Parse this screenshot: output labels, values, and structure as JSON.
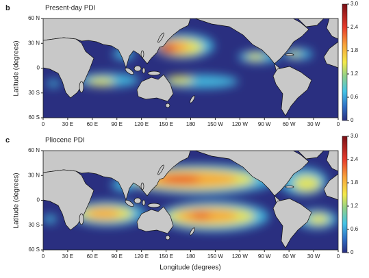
{
  "panels": [
    {
      "label": "b",
      "title": "Present-day PDI",
      "colorbar_ticks": [
        {
          "value": 3,
          "label": "3.0"
        },
        2.4,
        1.8,
        1.2,
        0.6,
        0
      ]
    },
    {
      "label": "c",
      "title": "Pliocene PDI",
      "colorbar_ticks": [
        {
          "value": 3,
          "label": "3.0"
        },
        2.4,
        1.8,
        1.2,
        0.6,
        0
      ]
    }
  ],
  "lat_ticks": [
    "60 N",
    "30 N",
    "0",
    "30 S",
    "60 S"
  ],
  "lon_ticks": [
    "0",
    "30 E",
    "60 E",
    "90 E",
    "120 E",
    "150 E",
    "180",
    "150 W",
    "120 W",
    "90 W",
    "60 W",
    "30 W",
    "0"
  ],
  "y_label": "Latitude (degrees)",
  "x_label": "Longitude (degrees)"
}
